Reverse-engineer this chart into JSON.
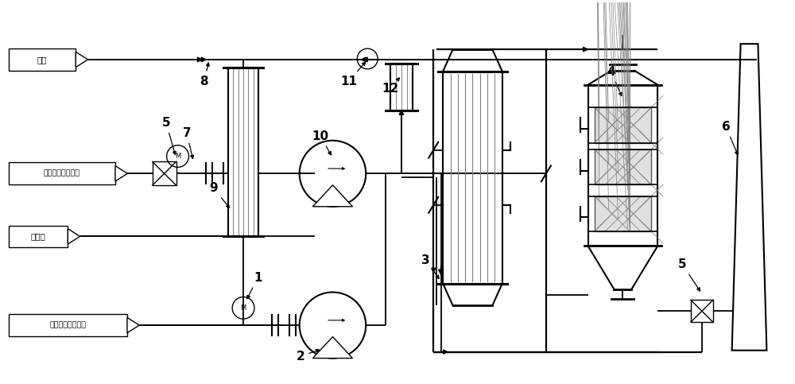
{
  "bg_color": "#ffffff",
  "line_color": "#000000",
  "labels": {
    "steam": "蔫汽",
    "dilution_air": "稀释空气来自大气",
    "cooling_water": "冷却水",
    "voc_collection": "有机废气收集系统"
  }
}
